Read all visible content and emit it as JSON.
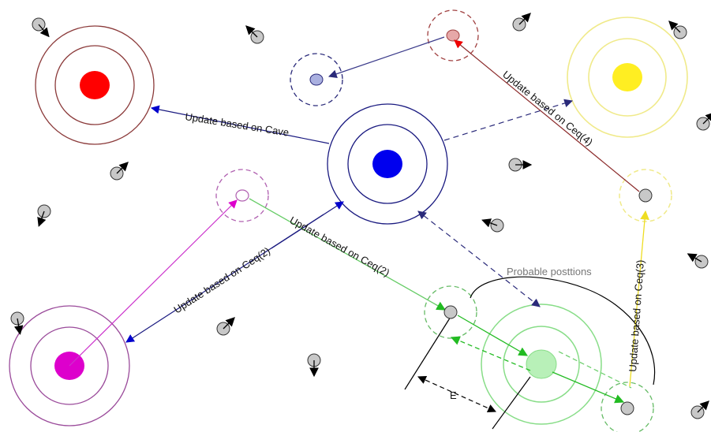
{
  "labels": {
    "cave": "Update based on Cave",
    "ceq4": "Update based on Ceq(4)",
    "ceq2_upper": "Update based on Ceq(2)",
    "ceq2_lower": "Update based on Ceq(2)",
    "ceq3": "Update based on Ceq(3)",
    "probable": "Probable posttions",
    "e": "E"
  },
  "colors": {
    "red": "#ff0000",
    "blue": "#0000ee",
    "yellow": "#ffee22",
    "magenta": "#dd00cc",
    "green": "#44cc44",
    "light_green": "#b8f0b8",
    "grey_particle": "#c8c8c8",
    "lavender": "#aab0e0",
    "pinkish": "#e6a8a8"
  },
  "icons": {
    "particle": "grey-circle-with-arrow-icon"
  }
}
